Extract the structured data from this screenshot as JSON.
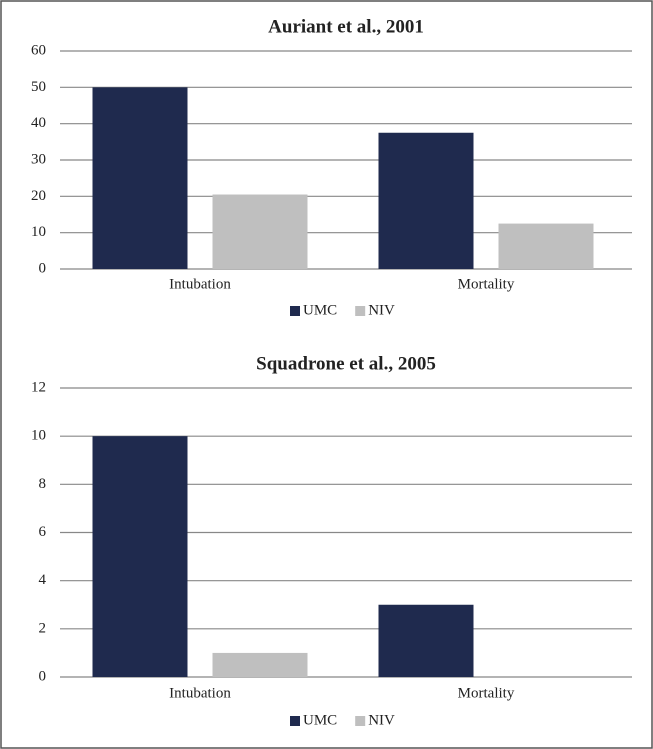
{
  "chart_data": [
    {
      "type": "bar",
      "title": "Auriant et al., 2001",
      "categories": [
        "Intubation",
        "Mortality"
      ],
      "series": [
        {
          "name": "UMC",
          "color": "#1f2a4e",
          "values": [
            50,
            37.5
          ]
        },
        {
          "name": "NIV",
          "color": "#bfbfbf",
          "values": [
            20.5,
            12.5
          ]
        }
      ],
      "ylim": [
        0,
        60
      ],
      "yticks": [
        0,
        10,
        20,
        30,
        40,
        50,
        60
      ],
      "grid": true,
      "legend": "bottom"
    },
    {
      "type": "bar",
      "title": "Squadrone et al., 2005",
      "categories": [
        "Intubation",
        "Mortality"
      ],
      "series": [
        {
          "name": "UMC",
          "color": "#1f2a4e",
          "values": [
            10,
            3
          ]
        },
        {
          "name": "NIV",
          "color": "#bfbfbf",
          "values": [
            1,
            0
          ]
        }
      ],
      "ylim": [
        0,
        12
      ],
      "yticks": [
        0,
        2,
        4,
        6,
        8,
        10,
        12
      ],
      "grid": true,
      "legend": "bottom"
    }
  ]
}
